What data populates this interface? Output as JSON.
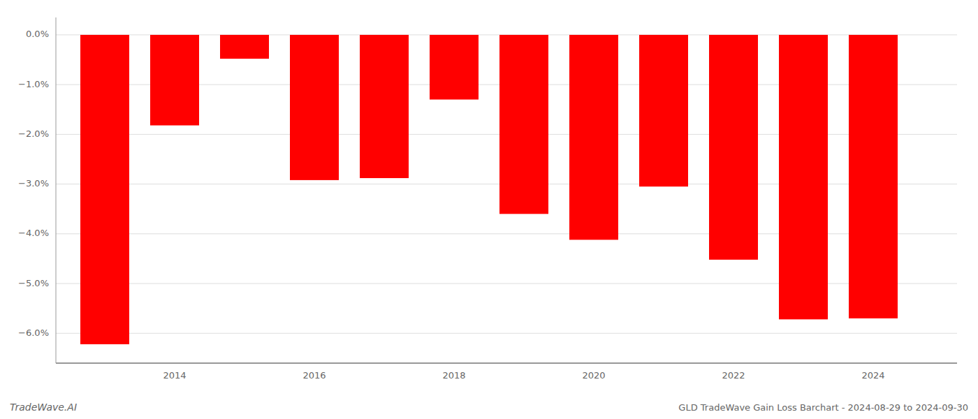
{
  "chart_data": {
    "type": "bar",
    "title": "GLD TradeWave Gain Loss Barchart - 2024-08-29 to 2024-09-30",
    "annotations": [
      "TradeWave.AI"
    ],
    "x": [
      2013,
      2014,
      2015,
      2016,
      2017,
      2018,
      2019,
      2020,
      2021,
      2022,
      2023,
      2024
    ],
    "values": [
      -6.22,
      -1.82,
      -0.48,
      -2.92,
      -2.88,
      -1.3,
      -3.6,
      -4.12,
      -3.05,
      -4.52,
      -5.72,
      -5.7
    ],
    "color": "#ff0000",
    "xlim": [
      2012.3,
      2025.2
    ],
    "xticks": [
      2014,
      2016,
      2018,
      2020,
      2022,
      2024
    ],
    "ylim": [
      -6.6,
      0.35
    ],
    "yticks": [
      {
        "value": 0.0,
        "label": "0.0%"
      },
      {
        "value": -1.0,
        "label": "−1.0%"
      },
      {
        "value": -2.0,
        "label": "−2.0%"
      },
      {
        "value": -3.0,
        "label": "−3.0%"
      },
      {
        "value": -4.0,
        "label": "−4.0%"
      },
      {
        "value": -5.0,
        "label": "−5.0%"
      },
      {
        "value": -6.0,
        "label": "−6.0%"
      }
    ],
    "grid": true
  }
}
